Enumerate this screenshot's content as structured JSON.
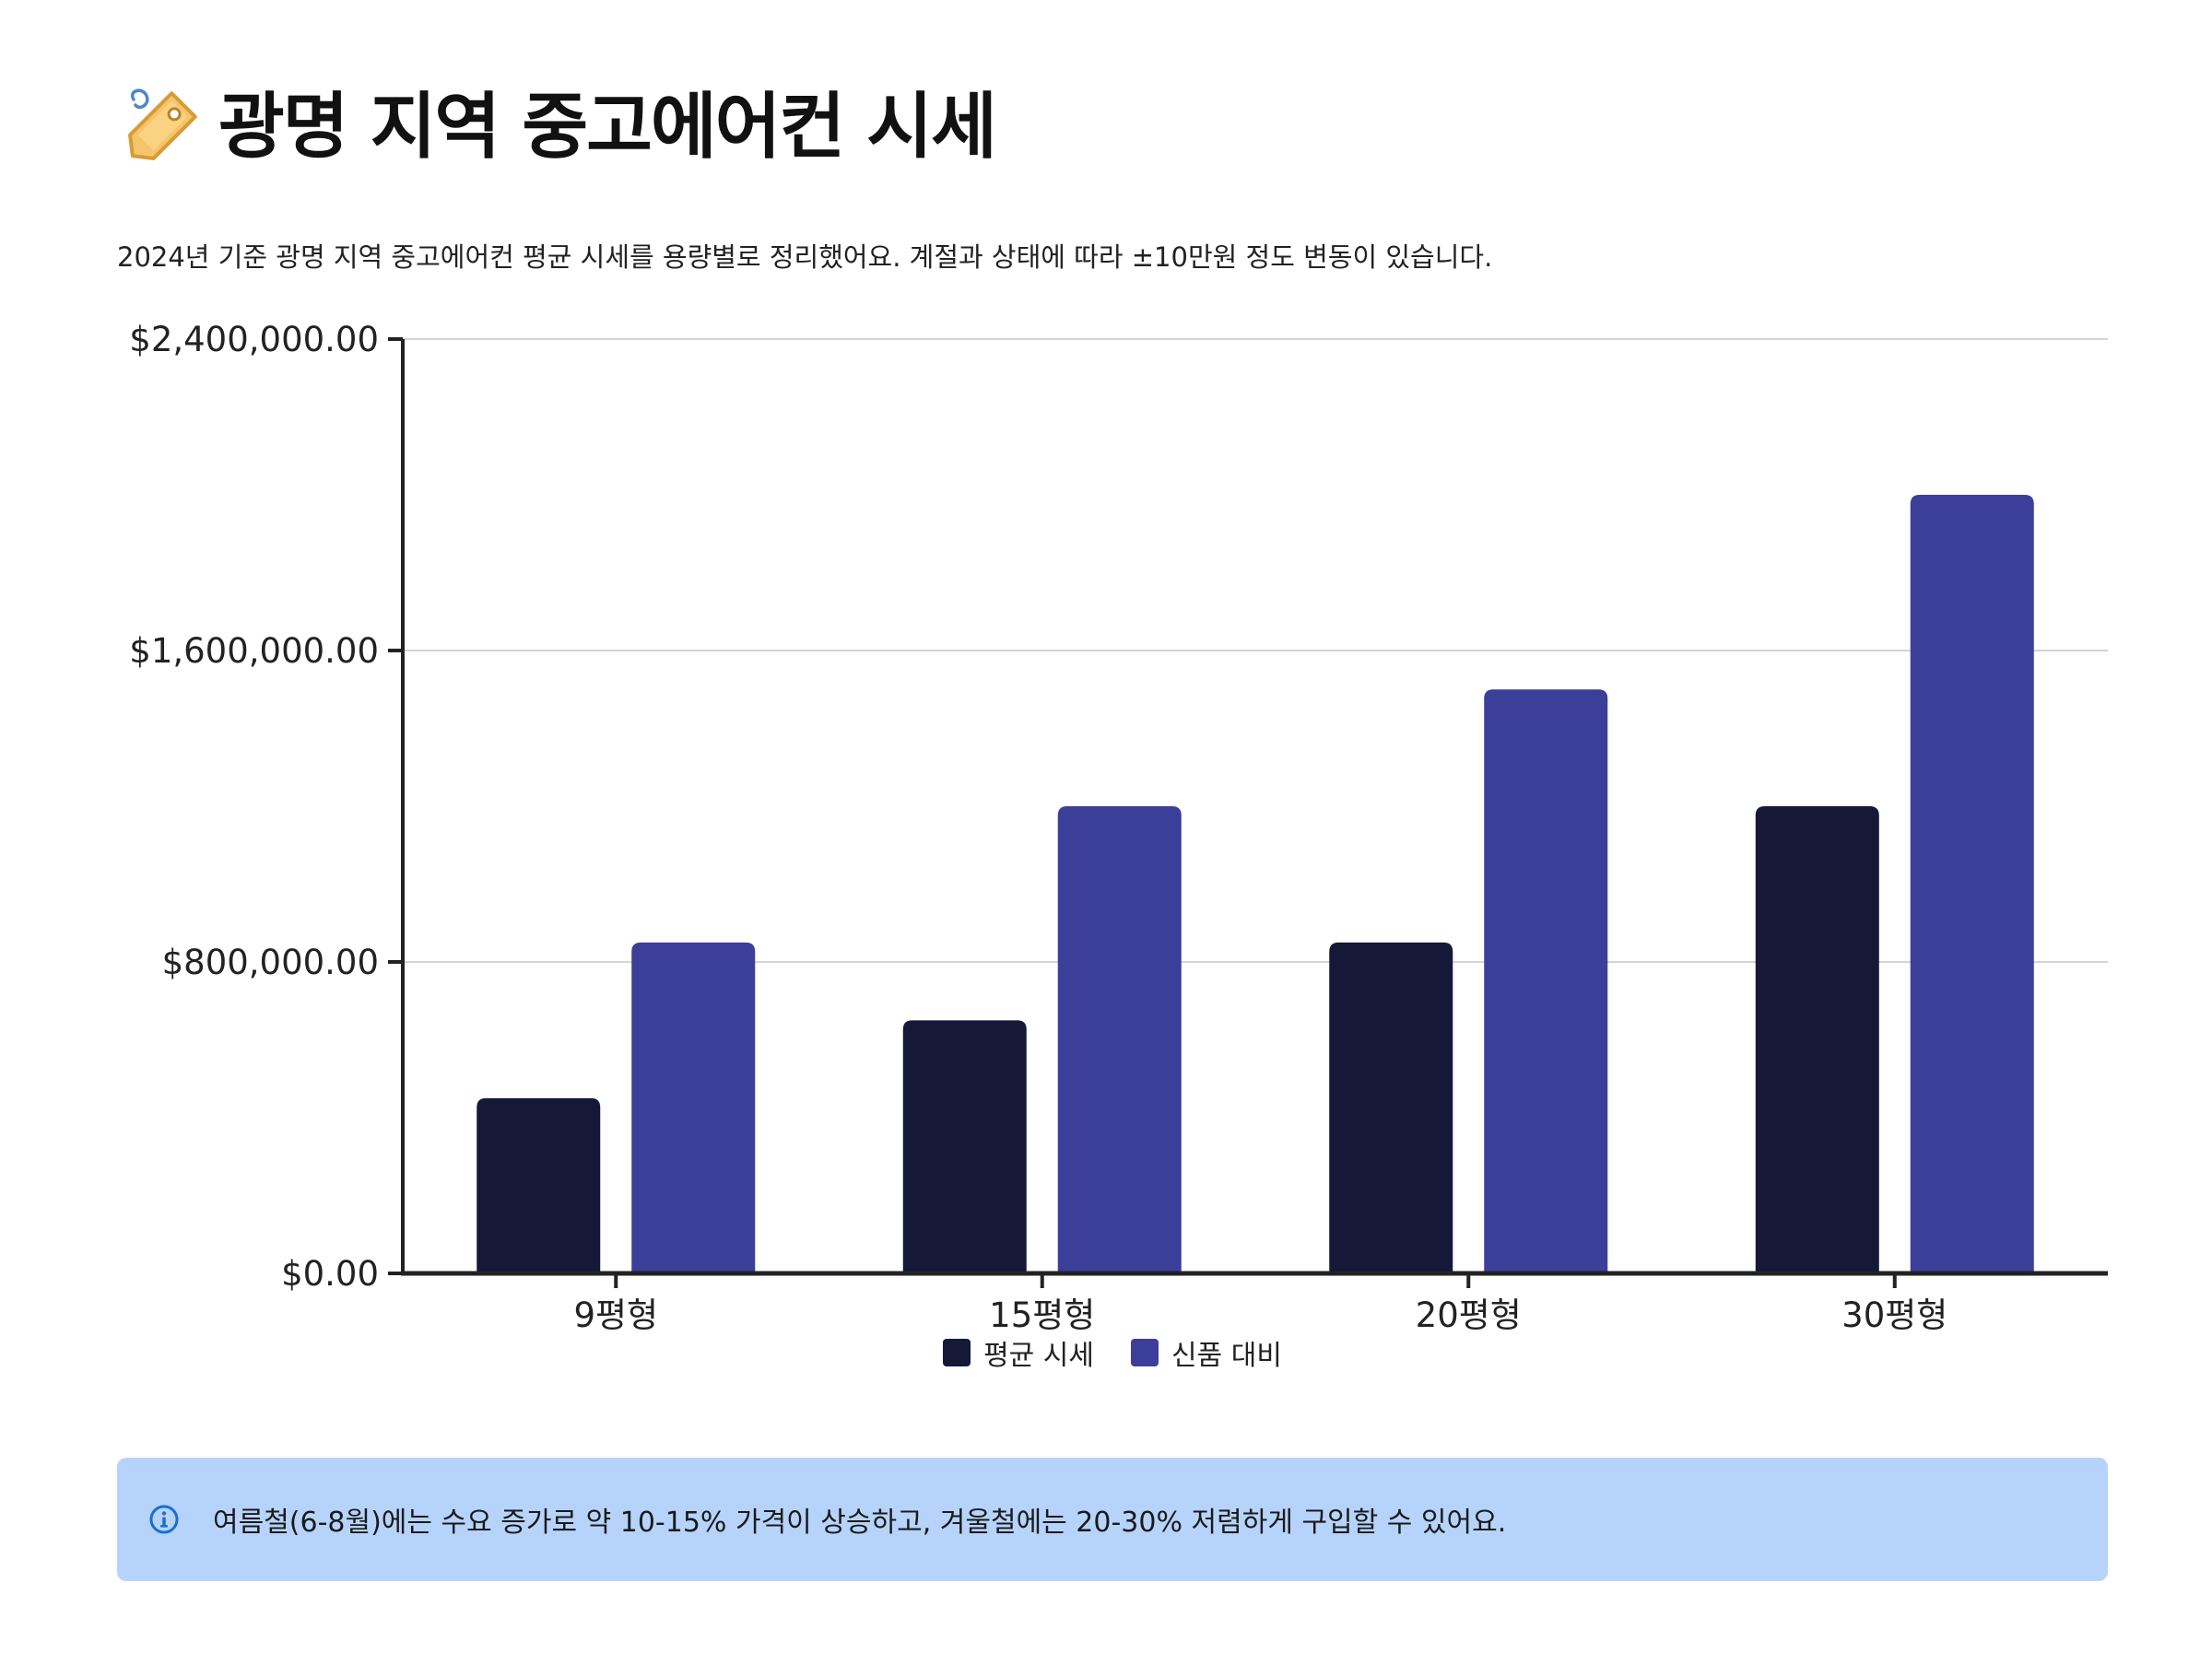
{
  "page": {
    "title": "광명 지역 중고에어컨 시세",
    "title_icon": "price-tag-icon",
    "subtitle": "2024년 기준 광명 지역 중고에어컨 평균 시세를 용량별로 정리했어요. 계절과 상태에 따라 ±10만원 정도 변동이 있습니다."
  },
  "chart_data": {
    "type": "bar",
    "title": "",
    "xlabel": "",
    "ylabel": "",
    "categories": [
      "9평형",
      "15평형",
      "20평형",
      "30평형"
    ],
    "series": [
      {
        "name": "평균 시세",
        "values": [
          450000,
          650000,
          850000,
          1200000
        ],
        "color": "#151837"
      },
      {
        "name": "신품 대비",
        "values": [
          850000,
          1200000,
          1500000,
          2000000
        ],
        "color": "#3b3f9a"
      }
    ],
    "ylim": [
      0,
      2400000
    ],
    "yticks": [
      0,
      800000,
      1600000,
      2400000
    ],
    "ytick_labels": [
      "$0.00",
      "$800,000.00",
      "$1,600,000.00",
      "$2,400,000.00"
    ],
    "grid": true,
    "legend": "bottom-center"
  },
  "callout": {
    "icon": "info-icon",
    "text": "여름철(6-8월)에는 수요 증가로 약 10-15% 가격이 상승하고, 겨울철에는 20-30% 저렴하게 구입할 수 있어요.",
    "background": "#b6d4fb",
    "icon_color": "#1b6fd1"
  }
}
